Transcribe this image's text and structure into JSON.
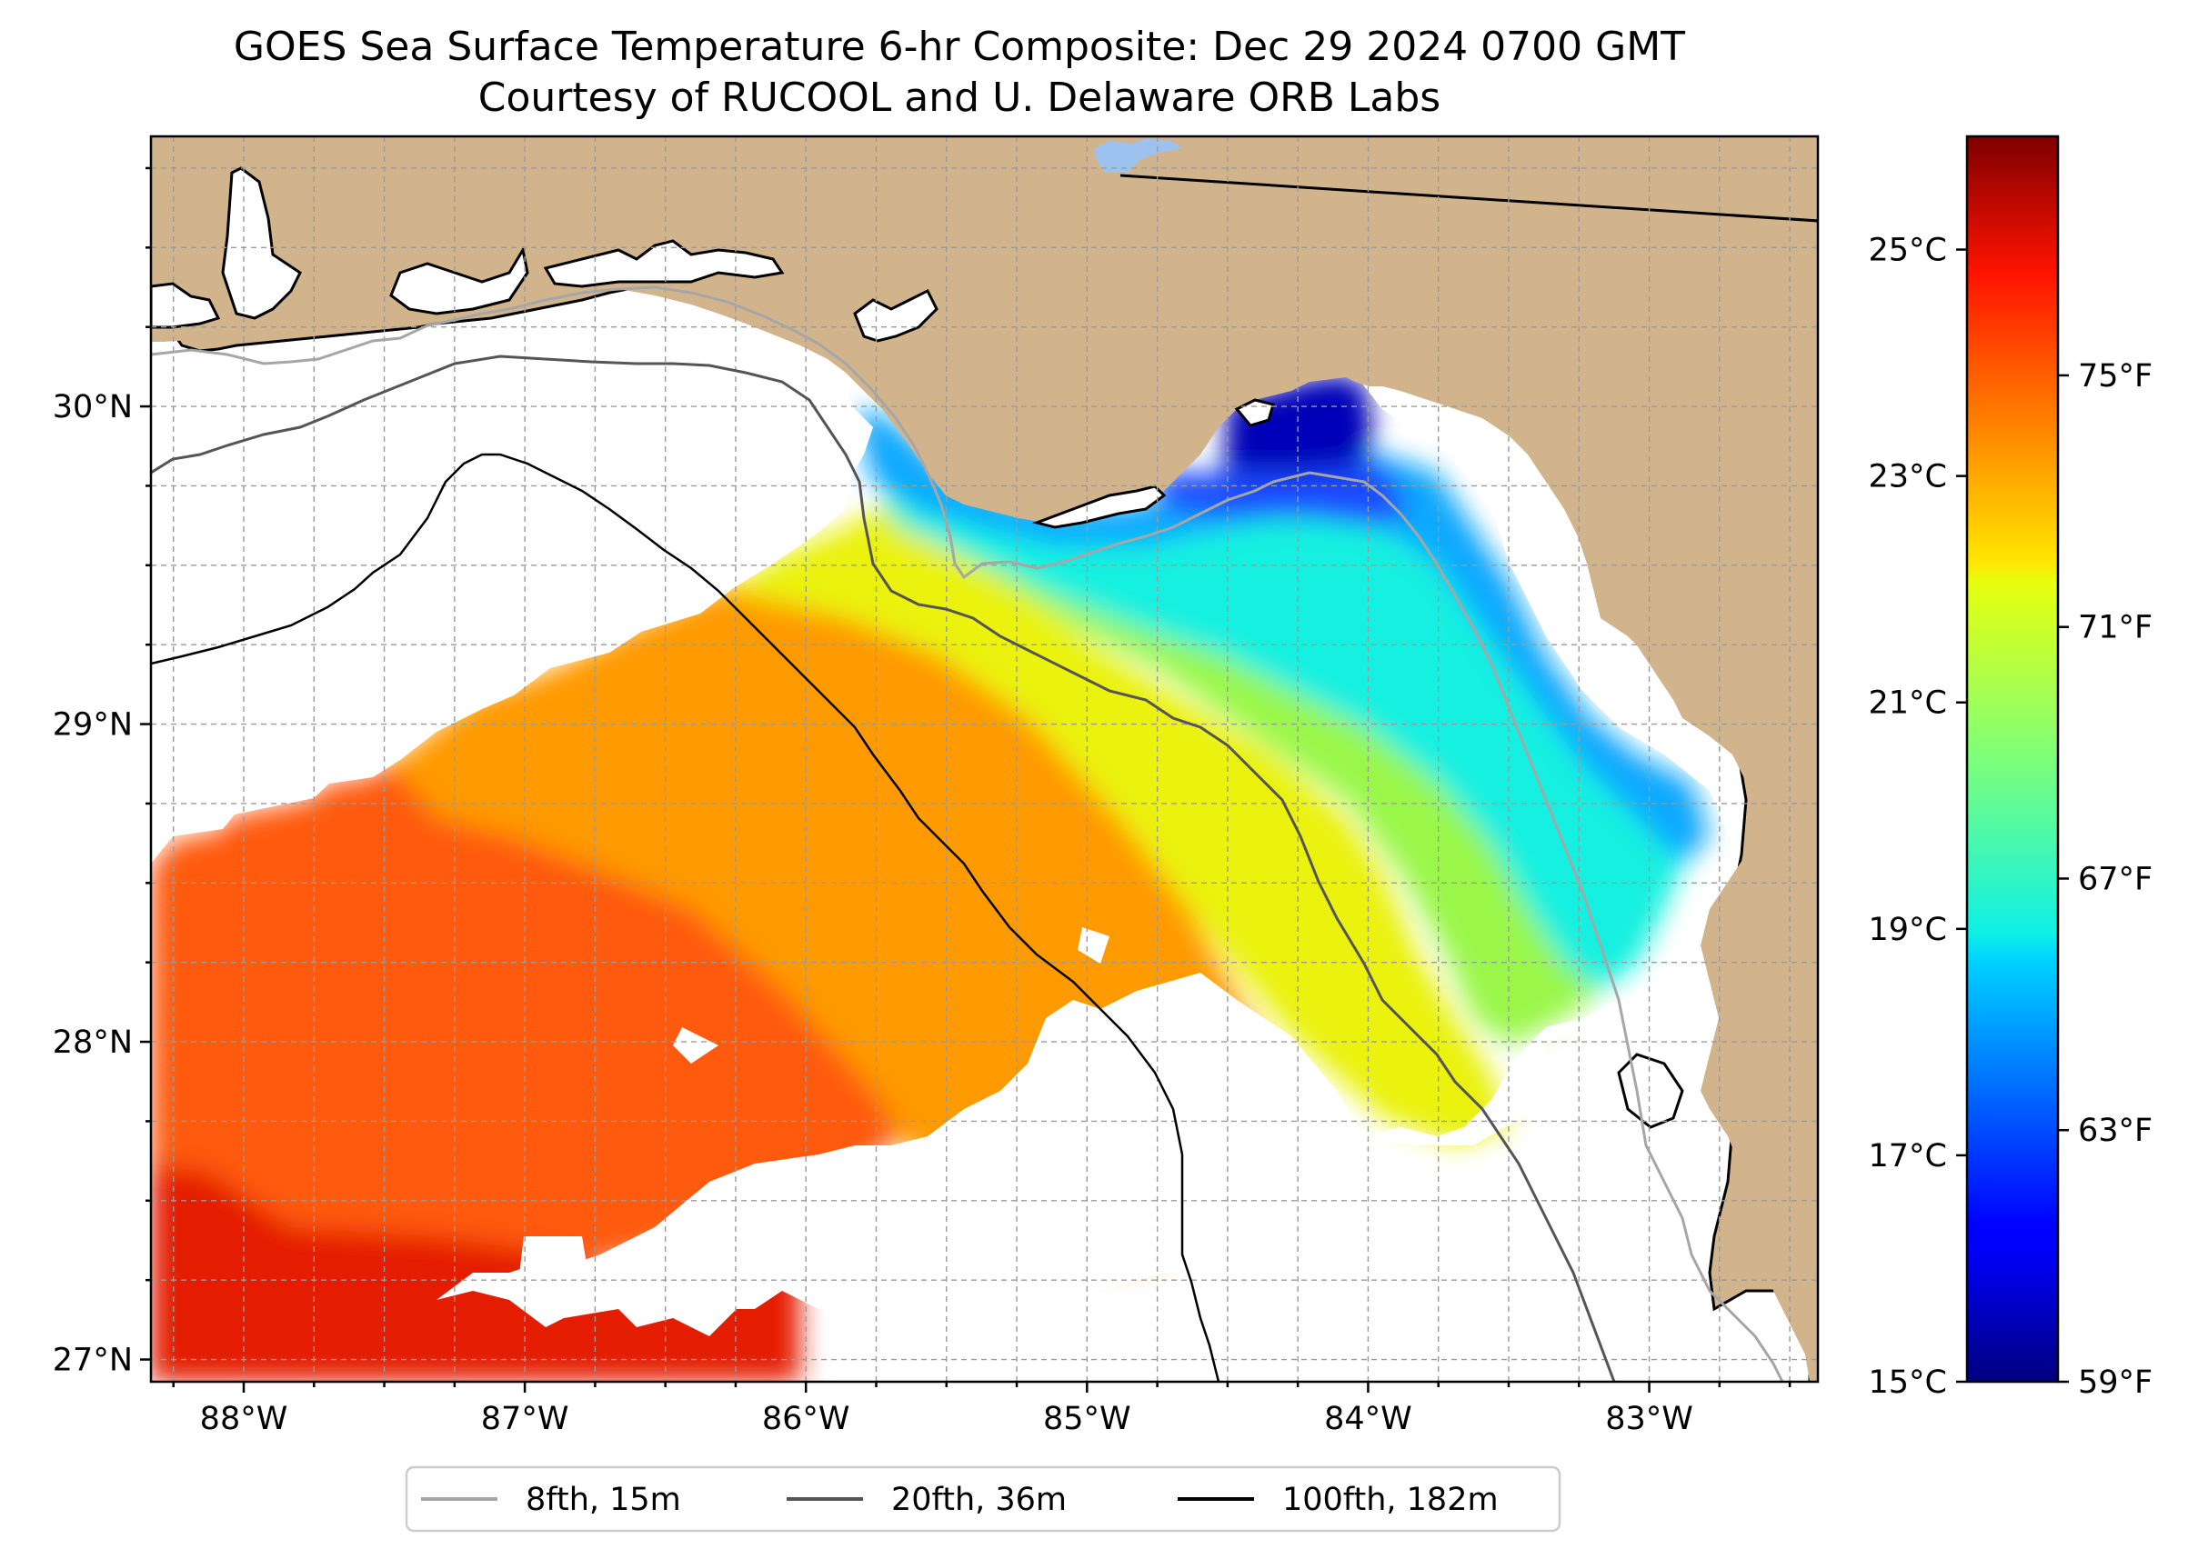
{
  "title_line1": "GOES Sea Surface Temperature 6-hr Composite: Dec 29 2024 0700 GMT",
  "title_line2": "Courtesy of RUCOOL and U. Delaware ORB Labs",
  "map": {
    "lon_range": [
      -88.33,
      -82.4
    ],
    "lat_range": [
      26.93,
      30.85
    ],
    "x_ticks": [
      "88°W",
      "87°W",
      "86°W",
      "85°W",
      "84°W",
      "83°W"
    ],
    "y_ticks": [
      "27°N",
      "28°N",
      "29°N",
      "30°N"
    ],
    "land_color": "#d2b48c",
    "grid": true
  },
  "legend": {
    "items": [
      {
        "label": "8fth, 15m",
        "color": "#a6a6a6"
      },
      {
        "label": "20fth, 36m",
        "color": "#555555"
      },
      {
        "label": "100fth, 182m",
        "color": "#000000"
      }
    ],
    "placement": "bottom-center"
  },
  "colorbar": {
    "celsius_ticks": [
      "25°C",
      "23°C",
      "21°C",
      "19°C",
      "17°C",
      "15°C"
    ],
    "fahrenheit_ticks": [
      "75°F",
      "71°F",
      "67°F",
      "63°F",
      "59°F"
    ],
    "range_c": [
      15,
      26
    ],
    "colormap": "jet"
  }
}
